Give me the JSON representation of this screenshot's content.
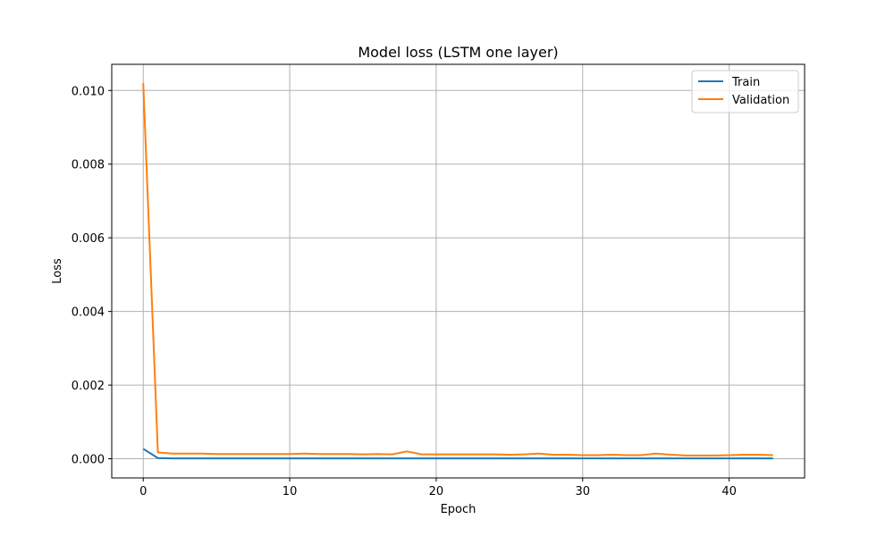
{
  "chart_data": {
    "type": "line",
    "title": "Model loss (LSTM one layer)",
    "xlabel": "Epoch",
    "ylabel": "Loss",
    "xlim": [
      -2.15,
      45.15
    ],
    "ylim": [
      -0.00052,
      0.01071
    ],
    "xticks": [
      0,
      10,
      20,
      30,
      40
    ],
    "xtick_labels": [
      "0",
      "10",
      "20",
      "30",
      "40"
    ],
    "yticks": [
      0.0,
      0.002,
      0.004,
      0.006,
      0.008,
      0.01
    ],
    "ytick_labels": [
      "0.000",
      "0.002",
      "0.004",
      "0.006",
      "0.008",
      "0.010"
    ],
    "grid": true,
    "legend": "upper right",
    "colors": {
      "Train": "#1f77b4",
      "Validation": "#ff7f0e"
    },
    "x": [
      0,
      1,
      2,
      3,
      4,
      5,
      6,
      7,
      8,
      9,
      10,
      11,
      12,
      13,
      14,
      15,
      16,
      17,
      18,
      19,
      20,
      21,
      22,
      23,
      24,
      25,
      26,
      27,
      28,
      29,
      30,
      31,
      32,
      33,
      34,
      35,
      36,
      37,
      38,
      39,
      40,
      41,
      42,
      43
    ],
    "series": [
      {
        "name": "Train",
        "values": [
          0.00027,
          2e-05,
          1e-05,
          1e-05,
          1e-05,
          1e-05,
          1e-05,
          1e-05,
          1e-05,
          1e-05,
          1e-05,
          1e-05,
          1e-05,
          1e-05,
          1e-05,
          1e-05,
          1e-05,
          1e-05,
          1e-05,
          1e-05,
          1e-05,
          1e-05,
          1e-05,
          1e-05,
          1e-05,
          1e-05,
          1e-05,
          1e-05,
          1e-05,
          1e-05,
          1e-05,
          1e-05,
          1e-05,
          1e-05,
          1e-05,
          1e-05,
          1e-05,
          1e-05,
          1e-05,
          1e-05,
          1e-05,
          1e-05,
          1e-05,
          1e-05
        ]
      },
      {
        "name": "Validation",
        "values": [
          0.0102,
          0.00017,
          0.00014,
          0.00014,
          0.00014,
          0.00013,
          0.00013,
          0.00013,
          0.00013,
          0.00013,
          0.00013,
          0.00014,
          0.00013,
          0.00013,
          0.00013,
          0.00012,
          0.00013,
          0.00012,
          0.0002,
          0.00012,
          0.00012,
          0.00012,
          0.00012,
          0.00012,
          0.00012,
          0.00011,
          0.00012,
          0.00014,
          0.00011,
          0.00011,
          0.0001,
          0.0001,
          0.00011,
          0.0001,
          0.0001,
          0.00014,
          0.00011,
          9e-05,
          9e-05,
          9e-05,
          0.0001,
          0.00011,
          0.00011,
          0.0001
        ]
      }
    ]
  }
}
